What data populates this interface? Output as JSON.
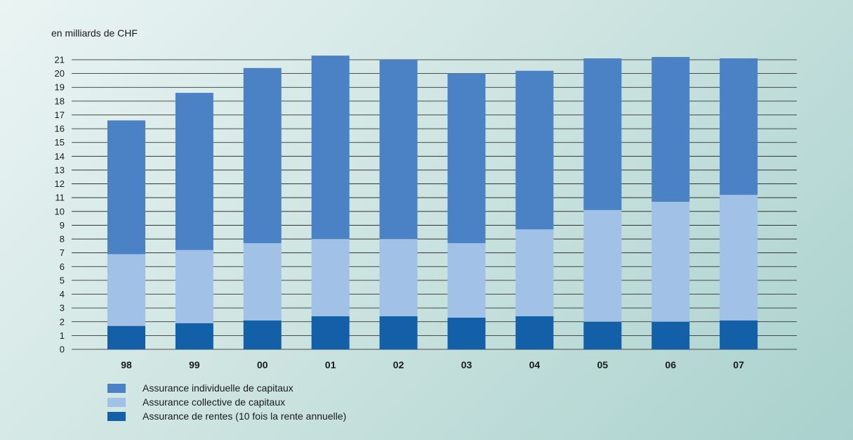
{
  "chart_data": {
    "type": "bar",
    "stacked": true,
    "ylabel": "en milliards de CHF",
    "ylim": [
      0,
      21
    ],
    "yticks": [
      0,
      1,
      2,
      3,
      4,
      5,
      6,
      7,
      8,
      9,
      10,
      11,
      12,
      13,
      14,
      15,
      16,
      17,
      18,
      19,
      20,
      21
    ],
    "grid": true,
    "legend_position": "bottom-left",
    "categories": [
      "98",
      "99",
      "00",
      "01",
      "02",
      "03",
      "04",
      "05",
      "06",
      "07"
    ],
    "series": [
      {
        "name": "Assurance de rentes (10 fois la rente annuelle)",
        "color": "#1360a8",
        "values": [
          1.7,
          1.9,
          2.1,
          2.4,
          2.4,
          2.3,
          2.4,
          2.0,
          2.0,
          2.1
        ]
      },
      {
        "name": "Assurance collective de capitaux",
        "color": "#a2c1e6",
        "values": [
          5.2,
          5.3,
          5.6,
          5.6,
          5.6,
          5.4,
          6.3,
          8.1,
          8.7,
          9.1
        ]
      },
      {
        "name": "Assurance individuelle de capitaux",
        "color": "#4a82c5",
        "values": [
          9.7,
          11.4,
          12.7,
          13.3,
          13.0,
          12.3,
          11.5,
          11.0,
          10.5,
          9.9
        ]
      }
    ],
    "legend_order": [
      "Assurance individuelle de capitaux",
      "Assurance collective de capitaux",
      "Assurance de rentes (10 fois la rente annuelle)"
    ]
  }
}
